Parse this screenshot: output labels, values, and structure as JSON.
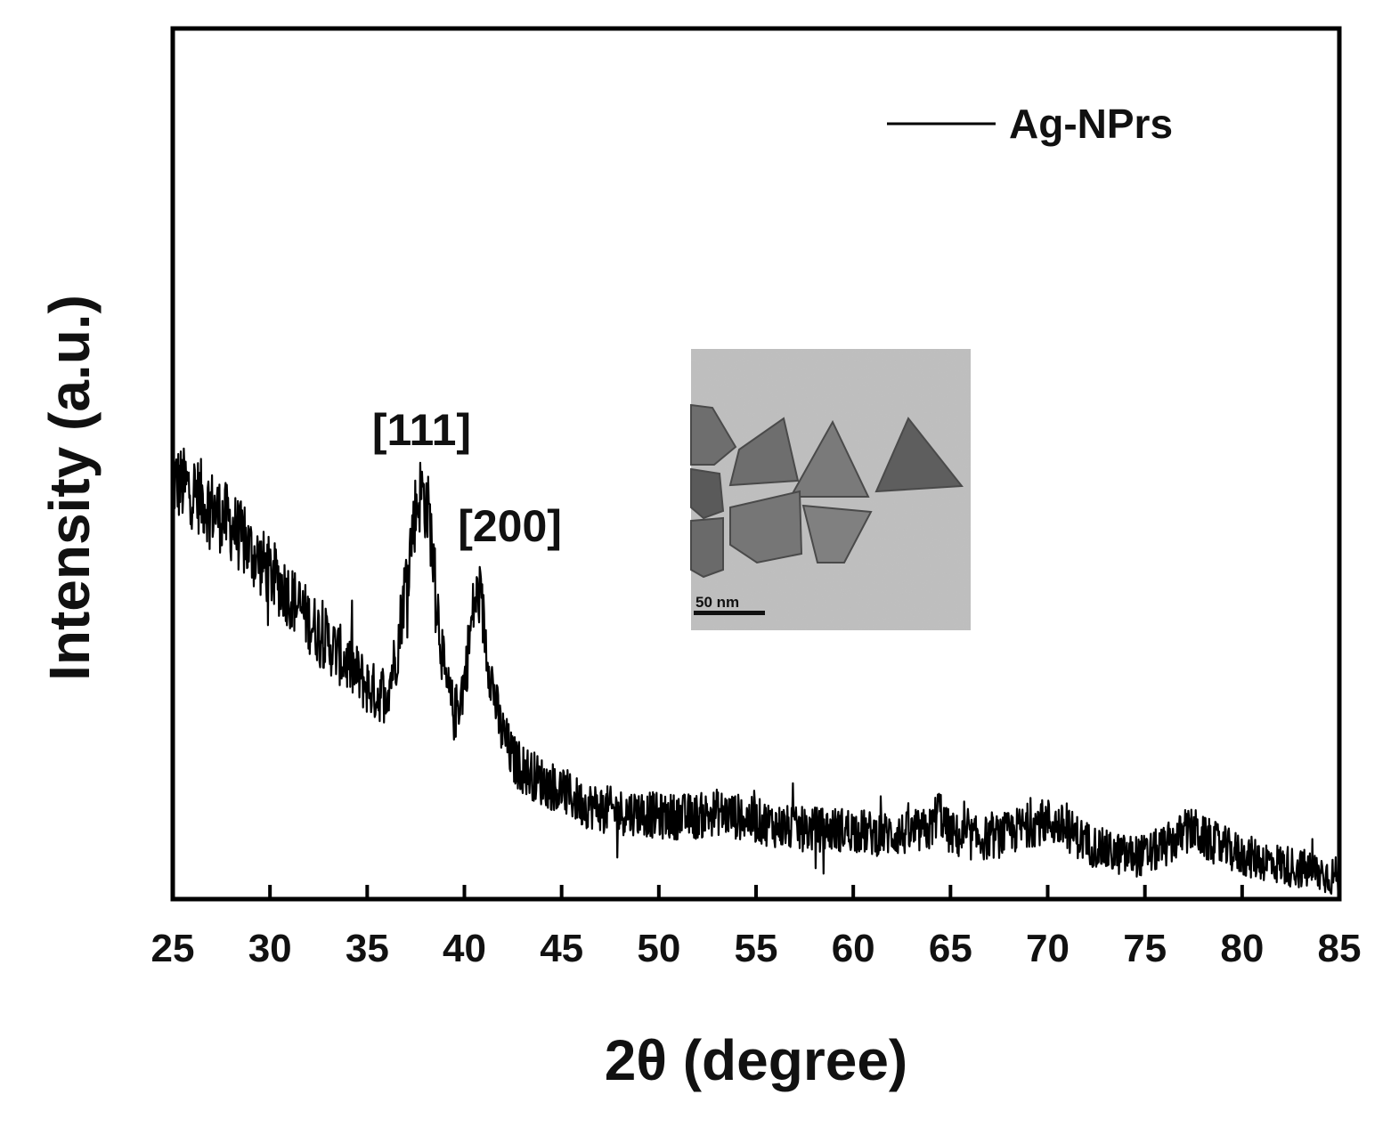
{
  "chart_data": {
    "type": "line",
    "title": "",
    "xlabel": "2θ (degree)",
    "ylabel": "Intensity (a.u.)",
    "xlim": [
      25,
      85
    ],
    "ylim": [
      0,
      100
    ],
    "xticks": [
      25,
      30,
      35,
      40,
      45,
      50,
      55,
      60,
      65,
      70,
      75,
      80,
      85
    ],
    "yticks": [],
    "grid": false,
    "legend": {
      "position": "top-right",
      "entries": [
        "Ag-NPrs"
      ]
    },
    "series": [
      {
        "name": "Ag-NPrs",
        "color": "#000000",
        "x": [
          25,
          26,
          27,
          28,
          29,
          30,
          31,
          32,
          33,
          34,
          35,
          35.5,
          36,
          36.5,
          37,
          37.5,
          37.8,
          38.2,
          38.6,
          39,
          39.5,
          40,
          40.5,
          40.8,
          41.2,
          41.8,
          42.5,
          43,
          44,
          45,
          46,
          47,
          48,
          49,
          50,
          51,
          52,
          53,
          54,
          55,
          56,
          57,
          58,
          59,
          60,
          61,
          62,
          63,
          64,
          64.4,
          64.8,
          65.5,
          66,
          67,
          68,
          69,
          70,
          71,
          72,
          73,
          74,
          75,
          76,
          77,
          77.5,
          78,
          79,
          80,
          81,
          82,
          83,
          84,
          85
        ],
        "y": [
          48,
          47,
          45,
          43,
          40,
          37.5,
          35,
          32,
          29.5,
          27,
          24.5,
          23.5,
          24,
          28,
          37,
          45,
          47,
          44,
          34,
          25,
          21,
          25,
          34,
          35,
          28,
          20,
          16,
          15,
          13.5,
          12.5,
          11,
          10.5,
          10,
          10,
          9.5,
          9.5,
          9.5,
          10,
          9.5,
          9,
          8.5,
          8,
          8,
          8,
          8,
          7.5,
          7.5,
          7.5,
          8,
          10.5,
          8,
          7,
          7,
          7,
          7.5,
          8.5,
          9,
          8,
          6.5,
          5.5,
          5,
          5,
          6,
          7.5,
          8,
          7,
          6,
          5,
          4.5,
          4,
          3.5,
          3,
          2.5
        ]
      }
    ],
    "annotations": [
      {
        "text": "[111]",
        "x": 37.8
      },
      {
        "text": "[200]",
        "x": 40.6
      }
    ],
    "inset": {
      "type": "image",
      "content": "TEM micrograph of triangular nanoprisms",
      "scale_bar": "50 nm"
    }
  }
}
